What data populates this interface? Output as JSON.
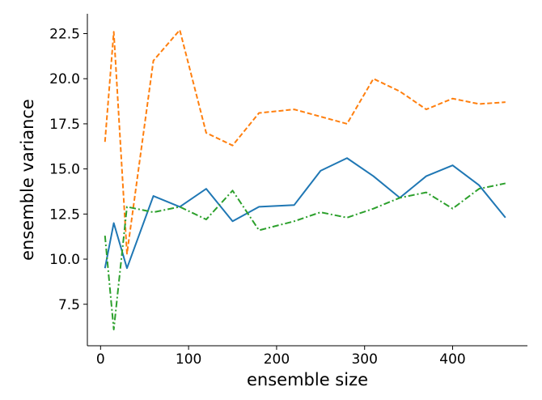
{
  "chart_data": {
    "type": "line",
    "title": "",
    "xlabel": "ensemble size",
    "ylabel": "ensemble variance",
    "xlim": [
      -15,
      485
    ],
    "ylim": [
      5.2,
      23.6
    ],
    "xticks": [
      0,
      100,
      200,
      300,
      400
    ],
    "yticks": [
      7.5,
      10.0,
      12.5,
      15.0,
      17.5,
      20.0,
      22.5
    ],
    "ytick_labels": [
      "7.5",
      "10.0",
      "12.5",
      "15.0",
      "17.5",
      "20.0",
      "22.5"
    ],
    "grid": false,
    "legend": "none",
    "x": [
      5,
      15,
      30,
      60,
      90,
      120,
      150,
      180,
      220,
      250,
      280,
      310,
      340,
      370,
      400,
      430,
      460
    ],
    "series": [
      {
        "color": "#1f77b4",
        "dash": "solid",
        "values": [
          9.5,
          12.0,
          9.5,
          13.5,
          12.9,
          13.9,
          12.1,
          12.9,
          13.0,
          14.9,
          15.6,
          14.6,
          13.4,
          14.6,
          15.2,
          14.1,
          12.3
        ]
      },
      {
        "color": "#ff7f0e",
        "dash": "dashed",
        "values": [
          16.5,
          22.6,
          10.3,
          21.0,
          22.7,
          17.0,
          16.3,
          18.1,
          18.3,
          17.9,
          17.5,
          20.0,
          19.3,
          18.3,
          18.9,
          18.6,
          18.7
        ]
      },
      {
        "color": "#2ca02c",
        "dash": "dashdot",
        "values": [
          11.3,
          6.1,
          12.9,
          12.6,
          12.9,
          12.2,
          13.8,
          11.6,
          12.1,
          12.6,
          12.3,
          12.8,
          13.4,
          13.7,
          12.8,
          13.9,
          14.2
        ]
      }
    ]
  }
}
